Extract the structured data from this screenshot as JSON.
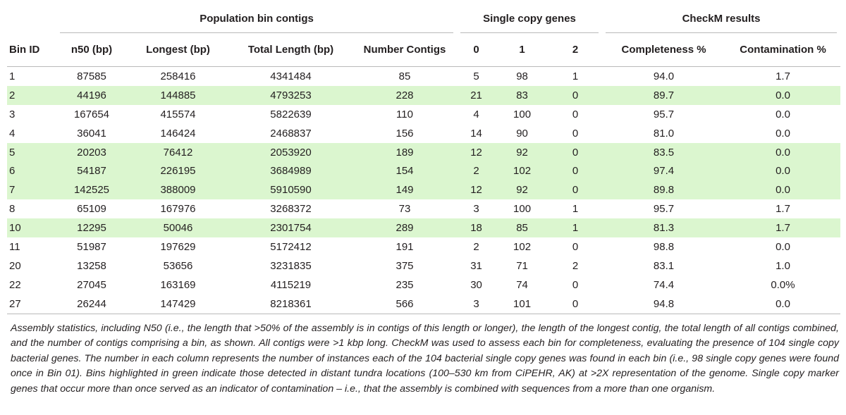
{
  "table": {
    "group_headers": {
      "population": "Population bin contigs",
      "single_copy": "Single copy genes",
      "checkm": "CheckM results"
    },
    "columns": [
      "Bin ID",
      "n50 (bp)",
      "Longest (bp)",
      "Total Length (bp)",
      "Number Contigs",
      "0",
      "1",
      "2",
      "Completeness %",
      "Contamination %"
    ],
    "rows": [
      {
        "highlight": false,
        "cells": [
          "1",
          "87585",
          "258416",
          "4341484",
          "85",
          "5",
          "98",
          "1",
          "94.0",
          "1.7"
        ]
      },
      {
        "highlight": true,
        "cells": [
          "2",
          "44196",
          "144885",
          "4793253",
          "228",
          "21",
          "83",
          "0",
          "89.7",
          "0.0"
        ]
      },
      {
        "highlight": false,
        "cells": [
          "3",
          "167654",
          "415574",
          "5822639",
          "110",
          "4",
          "100",
          "0",
          "95.7",
          "0.0"
        ]
      },
      {
        "highlight": false,
        "cells": [
          "4",
          "36041",
          "146424",
          "2468837",
          "156",
          "14",
          "90",
          "0",
          "81.0",
          "0.0"
        ]
      },
      {
        "highlight": true,
        "cells": [
          "5",
          "20203",
          "76412",
          "2053920",
          "189",
          "12",
          "92",
          "0",
          "83.5",
          "0.0"
        ]
      },
      {
        "highlight": true,
        "cells": [
          "6",
          "54187",
          "226195",
          "3684989",
          "154",
          "2",
          "102",
          "0",
          "97.4",
          "0.0"
        ]
      },
      {
        "highlight": true,
        "cells": [
          "7",
          "142525",
          "388009",
          "5910590",
          "149",
          "12",
          "92",
          "0",
          "89.8",
          "0.0"
        ]
      },
      {
        "highlight": false,
        "cells": [
          "8",
          "65109",
          "167976",
          "3268372",
          "73",
          "3",
          "100",
          "1",
          "95.7",
          "1.7"
        ]
      },
      {
        "highlight": true,
        "cells": [
          "10",
          "12295",
          "50046",
          "2301754",
          "289",
          "18",
          "85",
          "1",
          "81.3",
          "1.7"
        ]
      },
      {
        "highlight": false,
        "cells": [
          "11",
          "51987",
          "197629",
          "5172412",
          "191",
          "2",
          "102",
          "0",
          "98.8",
          "0.0"
        ]
      },
      {
        "highlight": false,
        "cells": [
          "20",
          "13258",
          "53656",
          "3231835",
          "375",
          "31",
          "71",
          "2",
          "83.1",
          "1.0"
        ]
      },
      {
        "highlight": false,
        "cells": [
          "22",
          "27045",
          "163169",
          "4115219",
          "235",
          "30",
          "74",
          "0",
          "74.4",
          "0.0%"
        ]
      },
      {
        "highlight": false,
        "cells": [
          "27",
          "26244",
          "147429",
          "8218361",
          "566",
          "3",
          "101",
          "0",
          "94.8",
          "0.0"
        ]
      }
    ]
  },
  "caption": "Assembly statistics, including N50 (i.e., the length that >50% of the assembly is in contigs of this length or longer), the length of the longest contig, the total length of all contigs combined, and the number of contigs comprising a bin, as shown. All contigs were >1 kbp long. CheckM was used to assess each bin for completeness, evaluating the presence of 104 single copy bacterial genes. The number in each column represents the number of instances each of the 104 bacterial single copy genes was found in each bin (i.e., 98 single copy genes were found once in Bin 01). Bins highlighted in green indicate those detected in distant tundra locations (100–530 km from CiPEHR, AK) at >2X representation of the genome. Single copy marker genes that occur more than once served as an indicator of contamination – i.e., that the assembly is combined with sequences from a more than one organism.",
  "colors": {
    "highlight_row": "#dbf6cf",
    "rule": "#b9b9b9",
    "text": "#231f20"
  }
}
